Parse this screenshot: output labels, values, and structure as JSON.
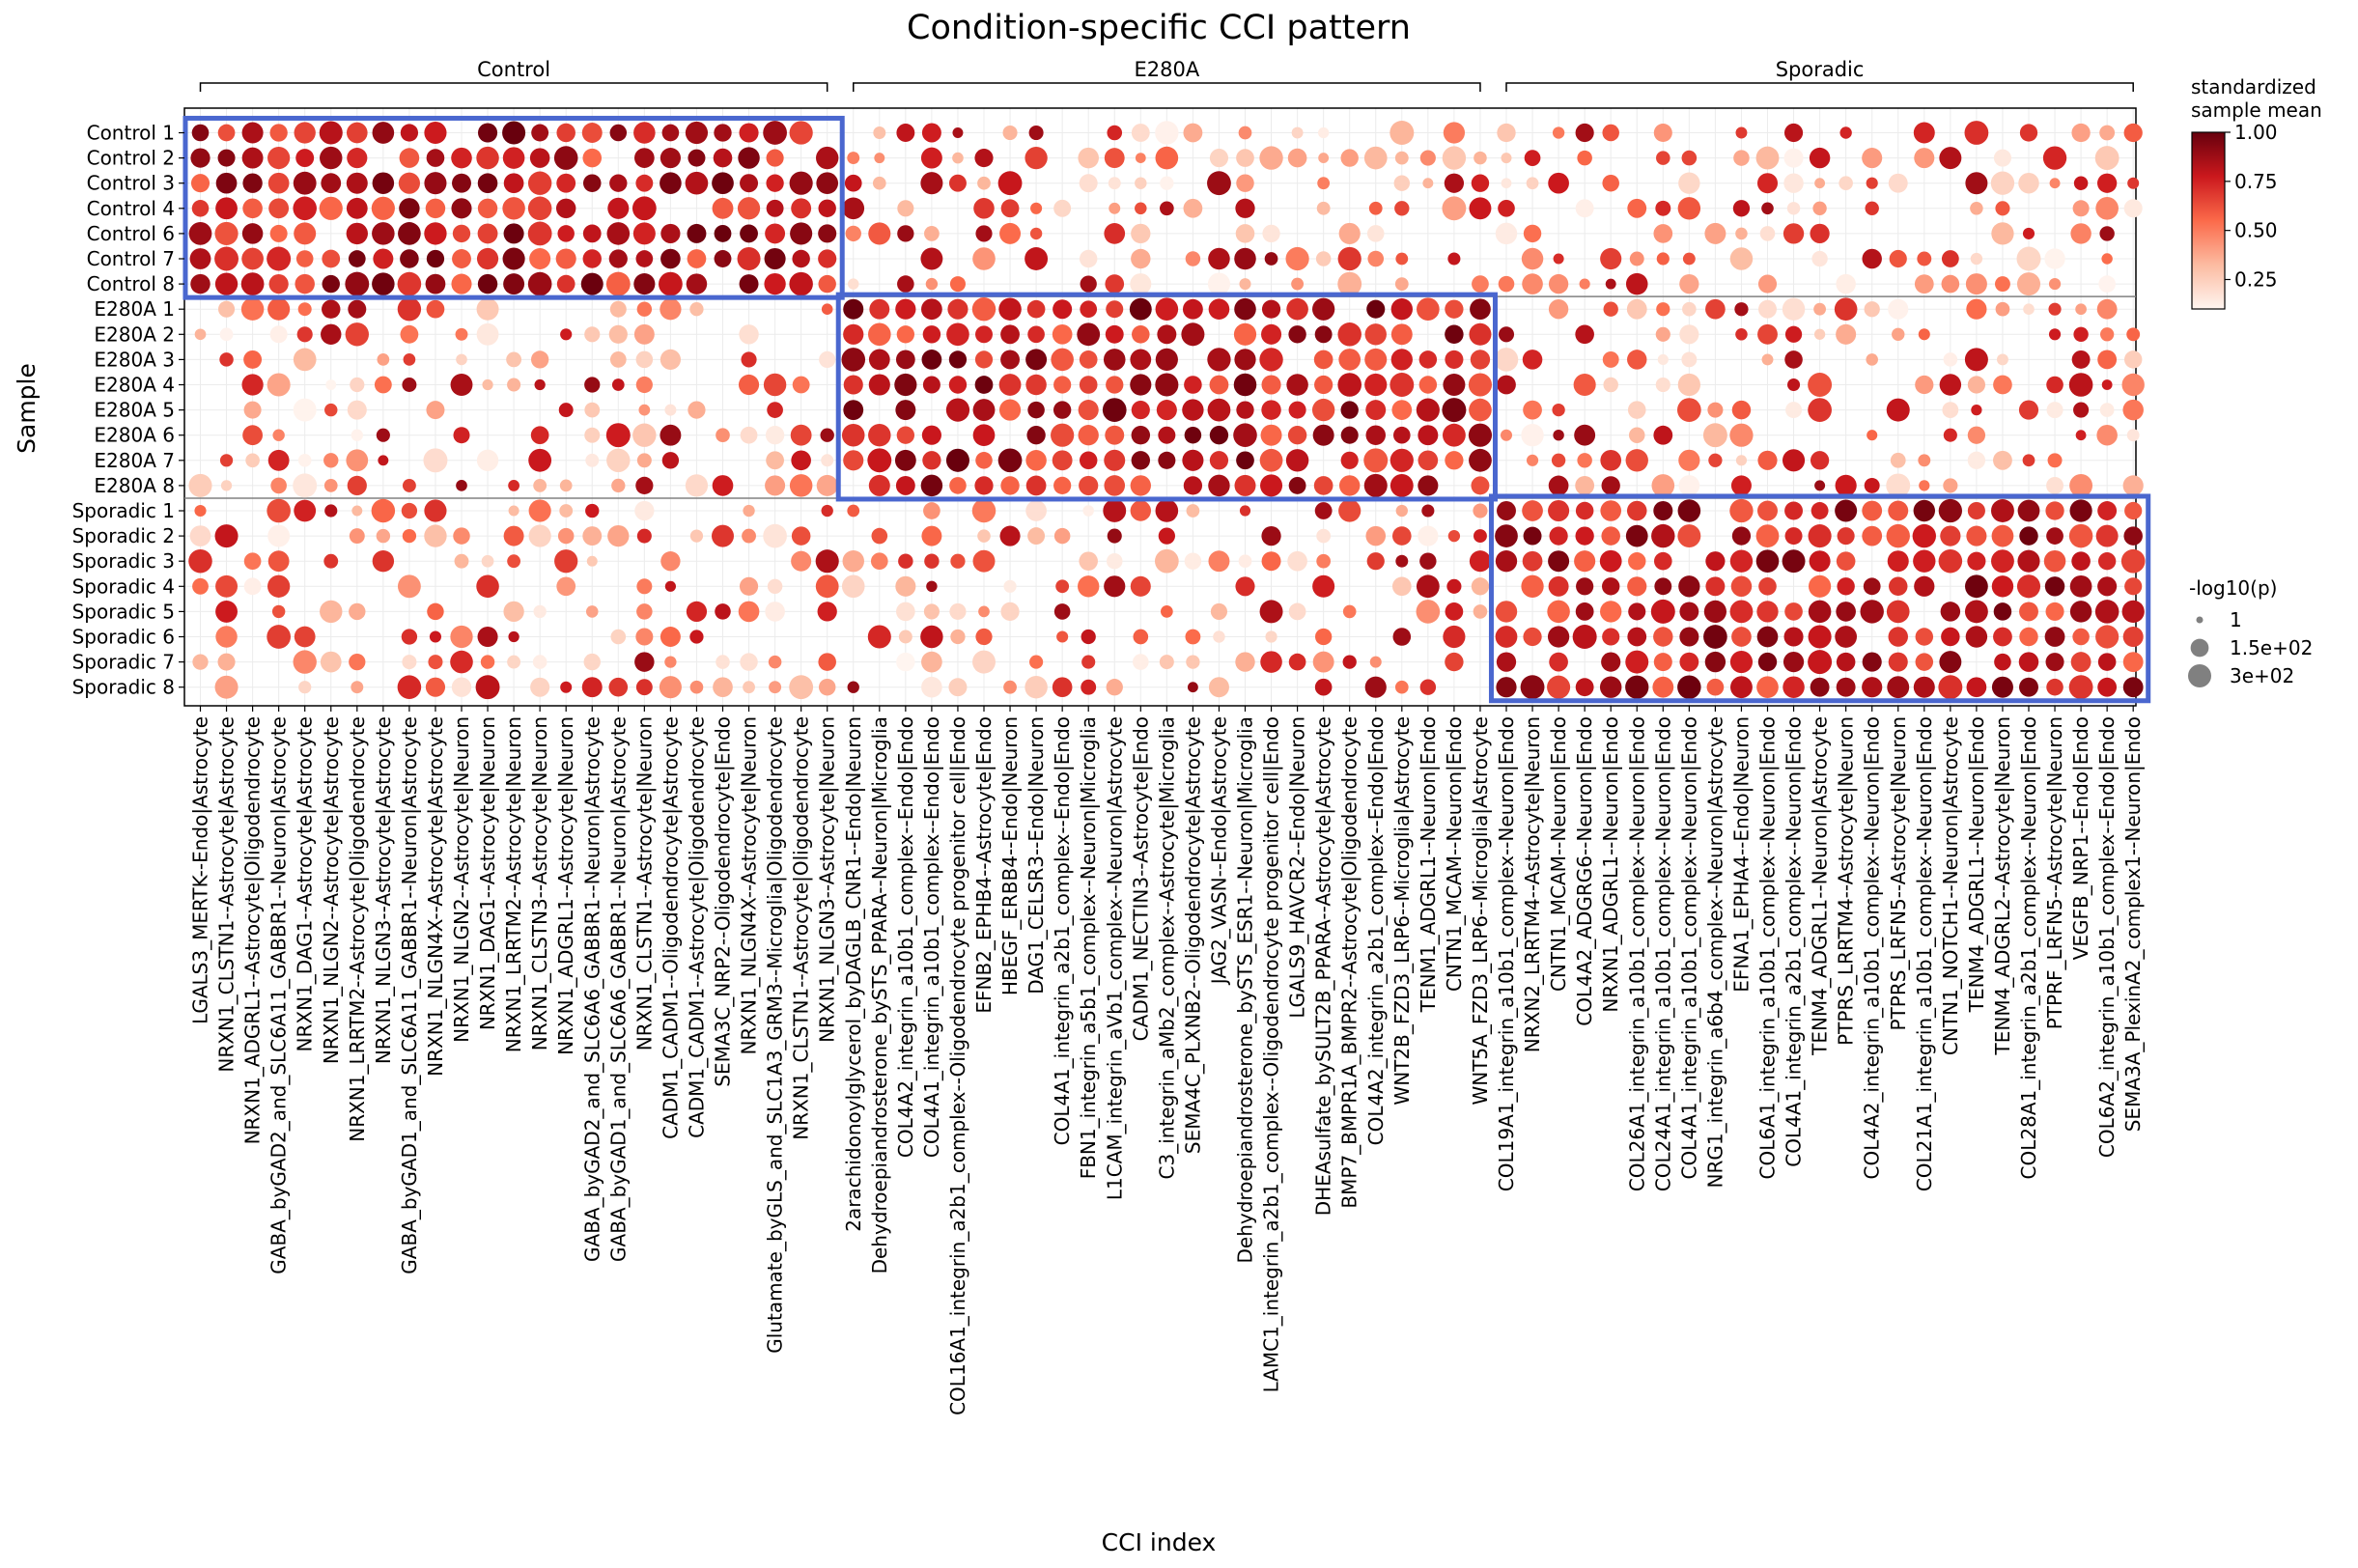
{
  "chart_data": {
    "type": "dot-heatmap",
    "title": "Condition-specific CCI pattern",
    "xlabel": "CCI index",
    "ylabel": "Sample",
    "groups": [
      {
        "name": "Control",
        "start": 0,
        "end": 24
      },
      {
        "name": "E280A",
        "start": 25,
        "end": 49
      },
      {
        "name": "Sporadic",
        "start": 50,
        "end": 74
      }
    ],
    "samples": [
      "Control 1",
      "Control 2",
      "Control 3",
      "Control 4",
      "Control 6",
      "Control 7",
      "Control 8",
      "E280A 1",
      "E280A 2",
      "E280A 3",
      "E280A 4",
      "E280A 5",
      "E280A 6",
      "E280A 7",
      "E280A 8",
      "Sporadic 1",
      "Sporadic 2",
      "Sporadic 3",
      "Sporadic 4",
      "Sporadic 5",
      "Sporadic 6",
      "Sporadic 7",
      "Sporadic 8"
    ],
    "cci": [
      "LGALS3_MERTK--Endo|Astrocyte",
      "NRXN1_CLSTN1--Astrocyte|Astrocyte",
      "NRXN1_ADGRL1--Astrocyte|Oligodendrocyte",
      "GABA_byGAD2_and_SLC6A11_GABBR1--Neuron|Astrocyte",
      "NRXN1_DAG1--Astrocyte|Astrocyte",
      "NRXN1_NLGN2--Astrocyte|Astrocyte",
      "NRXN1_LRRTM2--Astrocyte|Oligodendrocyte",
      "NRXN1_NLGN3--Astrocyte|Astrocyte",
      "GABA_byGAD1_and_SLC6A11_GABBR1--Neuron|Astrocyte",
      "NRXN1_NLGN4X--Astrocyte|Astrocyte",
      "NRXN1_NLGN2--Astrocyte|Neuron",
      "NRXN1_DAG1--Astrocyte|Neuron",
      "NRXN1_LRRTM2--Astrocyte|Neuron",
      "NRXN1_CLSTN3--Astrocyte|Neuron",
      "NRXN1_ADGRL1--Astrocyte|Neuron",
      "GABA_byGAD2_and_SLC6A6_GABBR1--Neuron|Astrocyte",
      "GABA_byGAD1_and_SLC6A6_GABBR1--Neuron|Astrocyte",
      "NRXN1_CLSTN1--Astrocyte|Neuron",
      "CADM1_CADM1--Oligodendrocyte|Astrocyte",
      "CADM1_CADM1--Astrocyte|Oligodendrocyte",
      "SEMA3C_NRP2--Oligodendrocyte|Endo",
      "NRXN1_NLGN4X--Astrocyte|Neuron",
      "Glutamate_byGLS_and_SLC1A3_GRM3--Microglia|Oligodendrocyte",
      "NRXN1_CLSTN1--Astrocyte|Oligodendrocyte",
      "NRXN1_NLGN3--Astrocyte|Neuron",
      "2arachidonoylglycerol_byDAGLB_CNR1--Endo|Neuron",
      "Dehydroepiandrosterone_bySTS_PPARA--Neuron|Microglia",
      "COL4A2_integrin_a10b1_complex--Endo|Endo",
      "COL4A1_integrin_a10b1_complex--Endo|Endo",
      "COL16A1_integrin_a2b1_complex--Oligodendrocyte progenitor cell|Endo",
      "EFNB2_EPHB4--Astrocyte|Endo",
      "HBEGF_ERBB4--Endo|Neuron",
      "DAG1_CELSR3--Endo|Neuron",
      "COL4A1_integrin_a2b1_complex--Endo|Endo",
      "FBN1_integrin_a5b1_complex--Neuron|Microglia",
      "L1CAM_integrin_aVb1_complex--Neuron|Astrocyte",
      "CADM1_NECTIN3--Astrocyte|Endo",
      "C3_integrin_aMb2_complex--Astrocyte|Microglia",
      "SEMA4C_PLXNB2--Oligodendrocyte|Astrocyte",
      "JAG2_VASN--Endo|Astrocyte",
      "Dehydroepiandrosterone_bySTS_ESR1--Neuron|Microglia",
      "LAMC1_integrin_a2b1_complex--Oligodendrocyte progenitor cell|Endo",
      "LGALS9_HAVCR2--Endo|Neuron",
      "DHEAsulfate_bySULT2B_PPARA--Astrocyte|Astrocyte",
      "BMP7_BMPR1A_BMPR2--Astrocyte|Oligodendrocyte",
      "COL4A2_integrin_a2b1_complex--Endo|Endo",
      "WNT2B_FZD3_LRP6--Microglia|Astrocyte",
      "TENM1_ADGRL1--Neuron|Endo",
      "CNTN1_MCAM--Neuron|Endo",
      "WNT5A_FZD3_LRP6--Microglia|Astrocyte",
      "COL19A1_integrin_a10b1_complex--Neuron|Endo",
      "NRXN2_LRRTM4--Astrocyte|Neuron",
      "CNTN1_MCAM--Neuron|Endo",
      "COL4A2_ADGRG6--Neuron|Endo",
      "NRXN1_ADGRL1--Neuron|Endo",
      "COL26A1_integrin_a10b1_complex--Neuron|Endo",
      "COL24A1_integrin_a10b1_complex--Neuron|Endo",
      "COL4A1_integrin_a10b1_complex--Neuron|Endo",
      "NRG1_integrin_a6b4_complex--Neuron|Astrocyte",
      "EFNA1_EPHA4--Endo|Neuron",
      "COL6A1_integrin_a10b1_complex--Neuron|Endo",
      "COL4A1_integrin_a2b1_complex--Neuron|Endo",
      "TENM4_ADGRL1--Neuron|Astrocyte",
      "PTPRS_LRRTM4--Astrocyte|Neuron",
      "COL4A2_integrin_a10b1_complex--Neuron|Endo",
      "PTPRS_LRFN5--Astrocyte|Neuron",
      "COL21A1_integrin_a10b1_complex--Neuron|Endo",
      "CNTN1_NOTCH1--Neuron|Astrocyte",
      "TENM4_ADGRL1--Neuron|Endo",
      "TENM4_ADGRL2--Astrocyte|Neuron",
      "COL28A1_integrin_a2b1_complex--Neuron|Endo",
      "PTPRF_LRFN5--Astrocyte|Neuron",
      "VEGFB_NRP1--Endo|Endo",
      "COL6A2_integrin_a10b1_complex--Endo|Endo",
      "SEMA3A_PlexinA2_complex1--Neuron|Endo"
    ],
    "value_scale": {
      "label": "standardized\nsample mean",
      "min": 0.1,
      "max": 1.0,
      "ticks": [
        0.25,
        0.5,
        0.75,
        1.0
      ],
      "tick_labels": [
        "0.25",
        "0.50",
        "0.75",
        "1.00"
      ]
    },
    "size_scale": {
      "label": "-log10(p)",
      "entries": [
        {
          "label": "1",
          "value": 1
        },
        {
          "label": "1.5e+02",
          "value": 150
        },
        {
          "label": "3e+02",
          "value": 300
        }
      ]
    },
    "highlight_boxes": [
      {
        "rows": [
          0,
          6
        ],
        "cols": [
          0,
          24
        ]
      },
      {
        "rows": [
          7,
          14
        ],
        "cols": [
          25,
          49
        ]
      },
      {
        "rows": [
          15,
          22
        ],
        "cols": [
          50,
          74
        ]
      }
    ],
    "grid": true,
    "legend_position": "right",
    "colormap": [
      "#fff5f0",
      "#fcbba1",
      "#fb6a4a",
      "#cb181d",
      "#67000d"
    ],
    "highlight_color": "#4a67cf"
  }
}
